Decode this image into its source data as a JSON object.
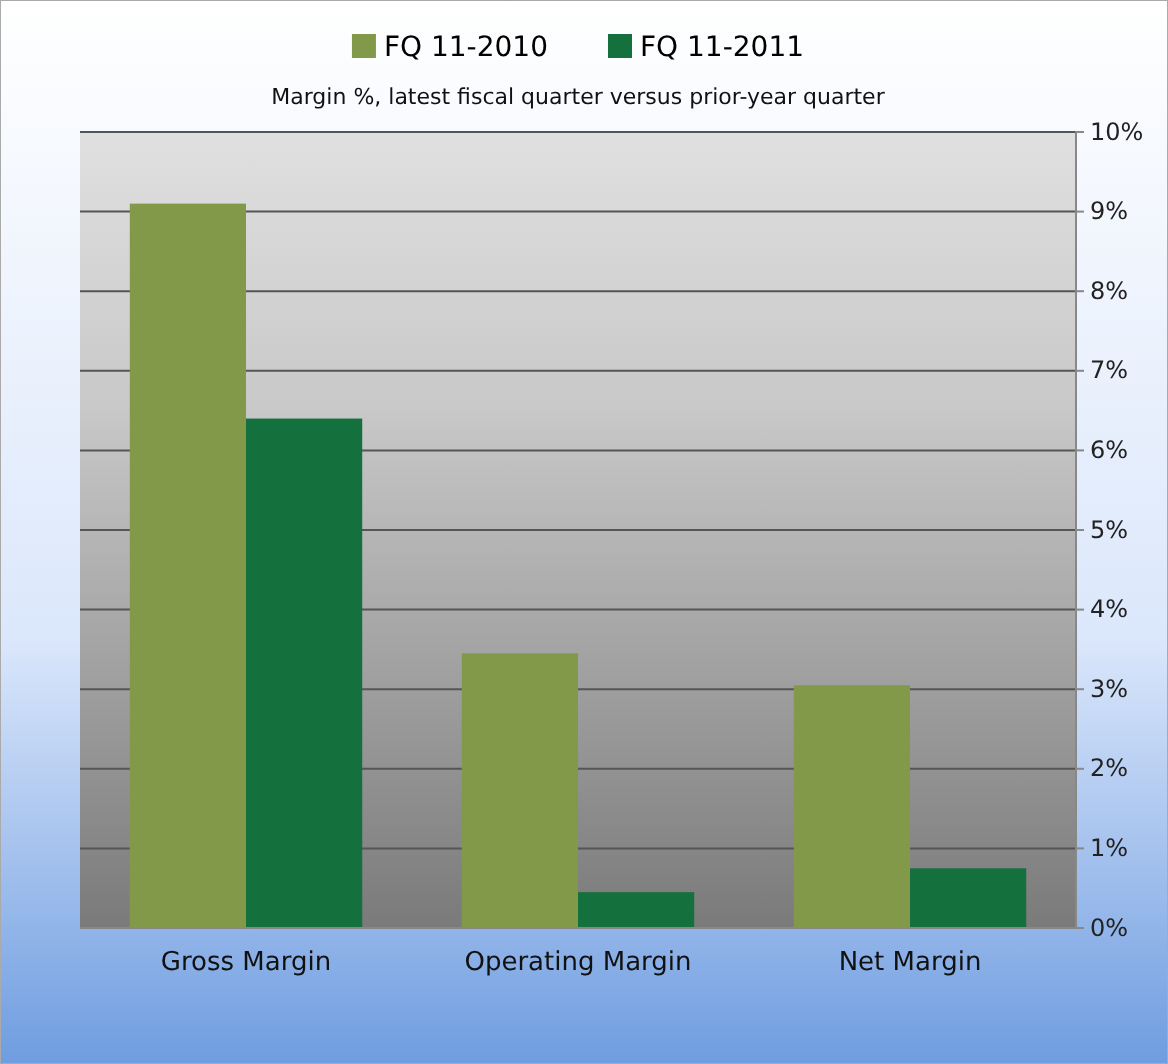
{
  "chart_data": {
    "type": "bar",
    "subtitle": "Margin %,  latest fiscal quarter versus prior-year quarter",
    "categories": [
      "Gross Margin",
      "Operating Margin",
      "Net Margin"
    ],
    "series": [
      {
        "name": "FQ 11-2010",
        "color": "#82994a",
        "values": [
          9.1,
          3.45,
          3.05
        ]
      },
      {
        "name": "FQ 11-2011",
        "color": "#14703c",
        "values": [
          6.4,
          0.45,
          0.75
        ]
      }
    ],
    "ylim": [
      0,
      10
    ],
    "yticks": [
      {
        "value": 0,
        "label": "0%"
      },
      {
        "value": 1,
        "label": "1%"
      },
      {
        "value": 2,
        "label": "2%"
      },
      {
        "value": 3,
        "label": "3%"
      },
      {
        "value": 4,
        "label": "4%"
      },
      {
        "value": 5,
        "label": "5%"
      },
      {
        "value": 6,
        "label": "6%"
      },
      {
        "value": 7,
        "label": "7%"
      },
      {
        "value": 8,
        "label": "8%"
      },
      {
        "value": 9,
        "label": "9%"
      },
      {
        "value": 10,
        "label": "10%"
      }
    ],
    "grid": "y",
    "legend": "top"
  }
}
